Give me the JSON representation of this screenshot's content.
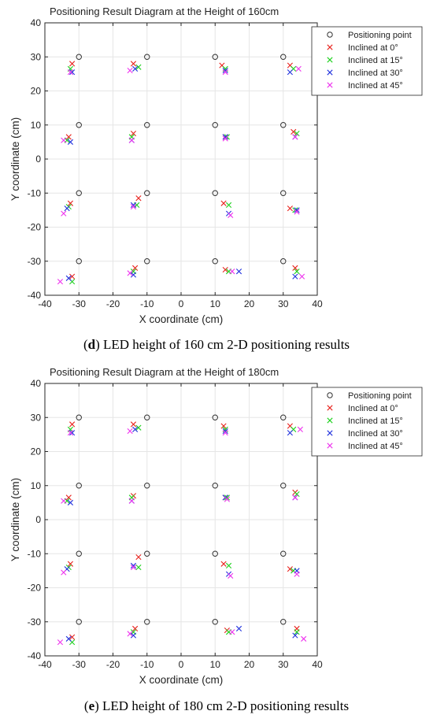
{
  "panels": [
    {
      "caption_letter": "d",
      "caption_text": " LED height of 160 cm 2-D positioning results"
    },
    {
      "caption_letter": "e",
      "caption_text": " LED height of 180 cm 2-D positioning results"
    }
  ],
  "series_colors": {
    "Positioning point": "#333333",
    "Inclined at 0°": "#e8231e",
    "Inclined at 15°": "#1fd11f",
    "Inclined at 30°": "#2233dd",
    "Inclined at 45°": "#ee33ee"
  },
  "chart_data": [
    {
      "type": "scatter",
      "title": "Positioning Result Diagram at the Height of 160cm",
      "xlabel": "X coordinate (cm)",
      "ylabel": "Y coordinate (cm)",
      "xlim": [
        -40,
        40
      ],
      "ylim": [
        -40,
        40
      ],
      "xticks": [
        -40,
        -30,
        -20,
        -10,
        0,
        10,
        20,
        30,
        40
      ],
      "yticks": [
        -40,
        -30,
        -20,
        -10,
        0,
        10,
        20,
        30,
        40
      ],
      "grid": true,
      "legend_position": "top-right",
      "series": [
        {
          "name": "Positioning point",
          "marker": "circle",
          "points": [
            [
              -30,
              30
            ],
            [
              -10,
              30
            ],
            [
              10,
              30
            ],
            [
              30,
              30
            ],
            [
              -30,
              10
            ],
            [
              -10,
              10
            ],
            [
              10,
              10
            ],
            [
              30,
              10
            ],
            [
              -30,
              -10
            ],
            [
              -10,
              -10
            ],
            [
              10,
              -10
            ],
            [
              30,
              -10
            ],
            [
              -30,
              -30
            ],
            [
              -10,
              -30
            ],
            [
              10,
              -30
            ],
            [
              30,
              -30
            ]
          ]
        },
        {
          "name": "Inclined at 0°",
          "marker": "x",
          "points": [
            [
              -32,
              28
            ],
            [
              -14,
              28
            ],
            [
              12,
              27.5
            ],
            [
              32,
              27.5
            ],
            [
              -33,
              6.5
            ],
            [
              -14,
              7.5
            ],
            [
              13,
              6.5
            ],
            [
              33,
              8
            ],
            [
              -32.5,
              -13
            ],
            [
              -12.5,
              -11.5
            ],
            [
              12.5,
              -13
            ],
            [
              32,
              -14.5
            ],
            [
              -32,
              -34.5
            ],
            [
              -13.5,
              -32
            ],
            [
              13,
              -32.5
            ],
            [
              33.5,
              -32
            ]
          ]
        },
        {
          "name": "Inclined at 15°",
          "marker": "x",
          "points": [
            [
              -32.5,
              26.5
            ],
            [
              -12.5,
              27
            ],
            [
              13,
              26.5
            ],
            [
              33,
              26.5
            ],
            [
              -33.5,
              5.5
            ],
            [
              -14.5,
              6.5
            ],
            [
              13.5,
              6.5
            ],
            [
              34,
              7.5
            ],
            [
              -33,
              -14
            ],
            [
              -13,
              -13.5
            ],
            [
              14,
              -13.5
            ],
            [
              33.5,
              -15
            ],
            [
              -32,
              -36
            ],
            [
              -14,
              -33
            ],
            [
              14,
              -33
            ],
            [
              34,
              -33
            ]
          ]
        },
        {
          "name": "Inclined at 30°",
          "marker": "x",
          "points": [
            [
              -32,
              25.5
            ],
            [
              -13.5,
              26.5
            ],
            [
              13,
              26
            ],
            [
              32,
              25.5
            ],
            [
              -32.5,
              5
            ],
            [
              -14.5,
              5.5
            ],
            [
              13,
              6.5
            ],
            [
              33.5,
              6.5
            ],
            [
              -33.5,
              -14.5
            ],
            [
              -14,
              -13.5
            ],
            [
              14,
              -16
            ],
            [
              34,
              -15
            ],
            [
              -33,
              -35
            ],
            [
              -14,
              -34
            ],
            [
              17,
              -33
            ],
            [
              33.5,
              -34.5
            ]
          ]
        },
        {
          "name": "Inclined at 45°",
          "marker": "x",
          "points": [
            [
              -32.5,
              25.5
            ],
            [
              -15,
              26
            ],
            [
              13,
              25.5
            ],
            [
              34.5,
              26.5
            ],
            [
              -34.5,
              5.5
            ],
            [
              -14.5,
              5.5
            ],
            [
              13,
              6
            ],
            [
              33.5,
              6.5
            ],
            [
              -34.5,
              -16
            ],
            [
              -14,
              -14
            ],
            [
              14.5,
              -16.5
            ],
            [
              34,
              -15.5
            ],
            [
              -35.5,
              -36
            ],
            [
              -15,
              -33.5
            ],
            [
              15,
              -33
            ],
            [
              35.5,
              -34.5
            ]
          ]
        }
      ]
    },
    {
      "type": "scatter",
      "title": "Positioning Result Diagram at the Height of 180cm",
      "xlabel": "X coordinate (cm)",
      "ylabel": "Y coordinate (cm)",
      "xlim": [
        -40,
        40
      ],
      "ylim": [
        -40,
        40
      ],
      "xticks": [
        -40,
        -30,
        -20,
        -10,
        0,
        10,
        20,
        30,
        40
      ],
      "yticks": [
        -40,
        -30,
        -20,
        -10,
        0,
        10,
        20,
        30,
        40
      ],
      "grid": true,
      "legend_position": "top-right",
      "series": [
        {
          "name": "Positioning point",
          "marker": "circle",
          "points": [
            [
              -30,
              30
            ],
            [
              -10,
              30
            ],
            [
              10,
              30
            ],
            [
              30,
              30
            ],
            [
              -30,
              10
            ],
            [
              -10,
              10
            ],
            [
              10,
              10
            ],
            [
              30,
              10
            ],
            [
              -30,
              -10
            ],
            [
              -10,
              -10
            ],
            [
              10,
              -10
            ],
            [
              30,
              -10
            ],
            [
              -30,
              -30
            ],
            [
              -10,
              -30
            ],
            [
              10,
              -30
            ],
            [
              30,
              -30
            ]
          ]
        },
        {
          "name": "Inclined at 0°",
          "marker": "x",
          "points": [
            [
              -32,
              28
            ],
            [
              -14,
              28
            ],
            [
              12.5,
              27.5
            ],
            [
              32,
              27.5
            ],
            [
              -33,
              6.5
            ],
            [
              -14,
              7
            ],
            [
              13,
              6.5
            ],
            [
              33.5,
              8
            ],
            [
              -32.5,
              -13
            ],
            [
              -12.5,
              -11
            ],
            [
              12.5,
              -13
            ],
            [
              32,
              -14.5
            ],
            [
              -32,
              -34.5
            ],
            [
              -13.5,
              -32
            ],
            [
              13.5,
              -32.5
            ],
            [
              34,
              -32
            ]
          ]
        },
        {
          "name": "Inclined at 15°",
          "marker": "x",
          "points": [
            [
              -32.5,
              26.5
            ],
            [
              -12.5,
              27
            ],
            [
              13,
              26.5
            ],
            [
              33,
              26.5
            ],
            [
              -33.5,
              5.5
            ],
            [
              -14.5,
              6.5
            ],
            [
              13.5,
              6.5
            ],
            [
              34,
              7.5
            ],
            [
              -33,
              -14
            ],
            [
              -12.5,
              -14
            ],
            [
              14,
              -13.5
            ],
            [
              33,
              -15
            ],
            [
              -32,
              -36
            ],
            [
              -14,
              -33
            ],
            [
              14,
              -33
            ],
            [
              34,
              -33
            ]
          ]
        },
        {
          "name": "Inclined at 30°",
          "marker": "x",
          "points": [
            [
              -32,
              25.5
            ],
            [
              -13.5,
              26.5
            ],
            [
              13,
              26
            ],
            [
              32,
              25.5
            ],
            [
              -32.5,
              5
            ],
            [
              -14.5,
              5.5
            ],
            [
              13,
              6.5
            ],
            [
              33.5,
              6.5
            ],
            [
              -33.5,
              -14.5
            ],
            [
              -14,
              -13.5
            ],
            [
              14,
              -16
            ],
            [
              34,
              -15
            ],
            [
              -33,
              -35
            ],
            [
              -14,
              -34
            ],
            [
              17,
              -32
            ],
            [
              33.5,
              -34
            ]
          ]
        },
        {
          "name": "Inclined at 45°",
          "marker": "x",
          "points": [
            [
              -32.5,
              25.5
            ],
            [
              -15,
              26
            ],
            [
              13,
              25.5
            ],
            [
              35,
              26.5
            ],
            [
              -34.5,
              5.5
            ],
            [
              -14.5,
              5.5
            ],
            [
              13.5,
              6
            ],
            [
              33.5,
              6.5
            ],
            [
              -34.5,
              -15.5
            ],
            [
              -14,
              -14
            ],
            [
              14.5,
              -16.5
            ],
            [
              34,
              -16
            ],
            [
              -35.5,
              -36
            ],
            [
              -15,
              -33.5
            ],
            [
              15,
              -33
            ],
            [
              36,
              -35
            ]
          ]
        }
      ]
    }
  ]
}
